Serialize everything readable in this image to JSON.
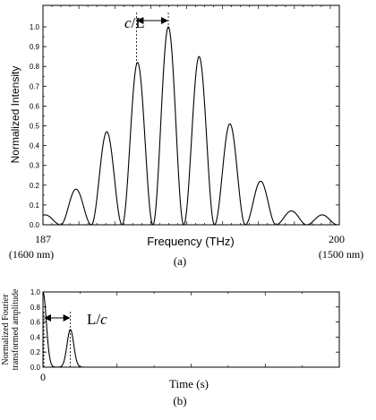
{
  "chart_data": [
    {
      "type": "line",
      "panel_label": "(a)",
      "xlabel": "Frequency (THz)",
      "ylabel": "Normalized Intensity",
      "xlim": [
        187,
        200
      ],
      "ylim": [
        0,
        1.05
      ],
      "x_ticks": [
        {
          "value": 187,
          "label": "187",
          "sub_label": "(1600 nm)"
        },
        {
          "value": 200,
          "label": "200",
          "sub_label": "(1500 nm)"
        }
      ],
      "y_ticks": [
        "0.0",
        "0.1",
        "0.2",
        "0.3",
        "0.4",
        "0.5",
        "0.6",
        "0.7",
        "0.8",
        "0.9",
        "1.0"
      ],
      "envelope_peaks": [
        {
          "x": 187.1,
          "y": 0.05
        },
        {
          "x": 188.4,
          "y": 0.18
        },
        {
          "x": 189.8,
          "y": 0.47
        },
        {
          "x": 191.1,
          "y": 0.82
        },
        {
          "x": 192.5,
          "y": 1.0
        },
        {
          "x": 193.8,
          "y": 0.85
        },
        {
          "x": 195.2,
          "y": 0.51
        },
        {
          "x": 196.6,
          "y": 0.22
        },
        {
          "x": 197.9,
          "y": 0.07
        }
      ],
      "annotation": {
        "text_italic": "c",
        "text_plain": "/L",
        "from_x": 191.1,
        "to_x": 192.5
      }
    },
    {
      "type": "line",
      "panel_label": "(b)",
      "xlabel": "Time (s)",
      "ylabel_line1": "Normalized Fourier",
      "ylabel_line2": "transformed amplitude",
      "xlim": [
        0,
        4
      ],
      "ylim": [
        0,
        1.0
      ],
      "x_ticks": [
        "0"
      ],
      "y_ticks": [
        "0.0",
        "0.2",
        "0.4",
        "0.6",
        "0.8",
        "1.0"
      ],
      "peaks": [
        {
          "x": 0.0,
          "y": 1.0
        },
        {
          "x": 0.37,
          "y": 0.5
        }
      ],
      "annotation": {
        "text_plain": "L/",
        "text_italic": "c",
        "from_x": 0.0,
        "to_x": 0.37
      }
    }
  ]
}
